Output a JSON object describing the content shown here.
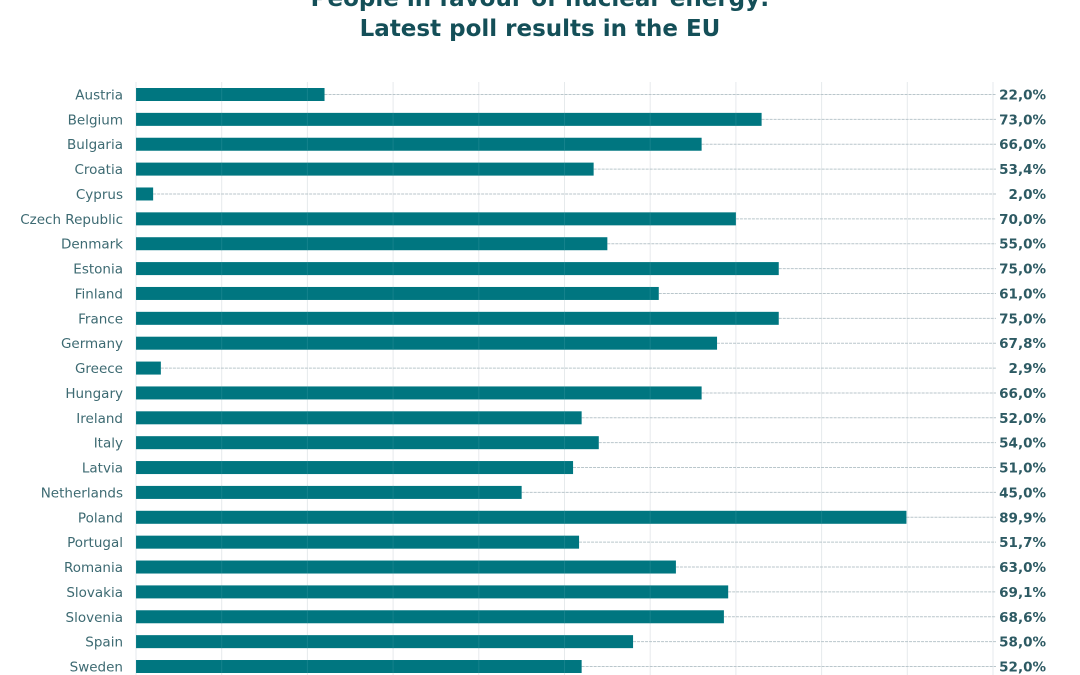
{
  "chart_data": {
    "type": "bar",
    "orientation": "horizontal",
    "title": "People in favour of nuclear energy:",
    "subtitle": "Latest poll results in the EU",
    "xlabel": "",
    "ylabel": "",
    "xlim": [
      0,
      100
    ],
    "grid": true,
    "value_suffix": "%",
    "categories": [
      "Austria",
      "Belgium",
      "Bulgaria",
      "Croatia",
      "Cyprus",
      "Czech Republic",
      "Denmark",
      "Estonia",
      "Finland",
      "France",
      "Germany",
      "Greece",
      "Hungary",
      "Ireland",
      "Italy",
      "Latvia",
      "Netherlands",
      "Poland",
      "Portugal",
      "Romania",
      "Slovakia",
      "Slovenia",
      "Spain",
      "Sweden"
    ],
    "values": [
      22.0,
      73.0,
      66.0,
      53.4,
      2.0,
      70.0,
      55.0,
      75.0,
      61.0,
      75.0,
      67.8,
      2.9,
      66.0,
      52.0,
      54.0,
      51.0,
      45.0,
      89.9,
      51.7,
      63.0,
      69.1,
      68.6,
      58.0,
      52.0
    ],
    "value_labels": [
      "22,0%",
      "73,0%",
      "66,0%",
      "53,4%",
      "2,0%",
      "70,0%",
      "55,0%",
      "75,0%",
      "61,0%",
      "75,0%",
      "67,8%",
      "2,9%",
      "66,0%",
      "52,0%",
      "54,0%",
      "51,0%",
      "45,0%",
      "89,9%",
      "51,7%",
      "63,0%",
      "69,1%",
      "68,6%",
      "58,0%",
      "52,0%"
    ],
    "colors": {
      "bar": "#007680",
      "title": "#144f58",
      "label": "#3d6a72",
      "value_label": "#2d5a63",
      "grid": "#e6eaec",
      "guide": "#b9c6cb"
    }
  }
}
